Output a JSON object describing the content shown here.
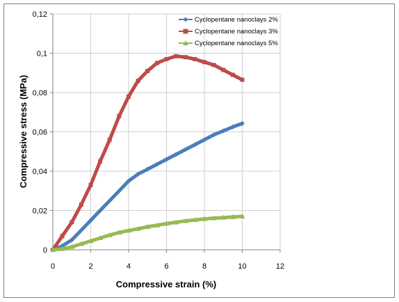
{
  "chart_data": {
    "type": "line",
    "xlabel": "Compressive strain (%)",
    "ylabel": "Compressive stress (MPa)",
    "xlim": [
      0,
      12
    ],
    "ylim": [
      0,
      0.12
    ],
    "xticks": [
      "0",
      "2",
      "4",
      "6",
      "8",
      "10",
      "12"
    ],
    "yticks": [
      "0",
      "0,02",
      "0,04",
      "0,06",
      "0,08",
      "0,1",
      "0,12"
    ],
    "grid": "horizontal and vertical",
    "legend_position": "top-right",
    "series": [
      {
        "name": "Cyclopentane nanoclays 2%",
        "color": "#4a7ebb",
        "marker": "diamond",
        "x": [
          0,
          0.5,
          1,
          1.5,
          2,
          2.5,
          3,
          3.5,
          4,
          4.5,
          5,
          5.5,
          6,
          6.5,
          7,
          7.5,
          8,
          8.5,
          9,
          9.5,
          10
        ],
        "y": [
          0,
          0.002,
          0.005,
          0.01,
          0.015,
          0.02,
          0.025,
          0.03,
          0.035,
          0.0385,
          0.041,
          0.0435,
          0.046,
          0.0485,
          0.051,
          0.0535,
          0.056,
          0.0585,
          0.0605,
          0.0625,
          0.0643
        ]
      },
      {
        "name": "Cyclopentane nanoclays 3%",
        "color": "#be4b48",
        "marker": "square",
        "x": [
          0,
          0.5,
          1,
          1.5,
          2,
          2.5,
          3,
          3.5,
          4,
          4.5,
          5,
          5.5,
          6,
          6.5,
          7,
          7.5,
          8,
          8.5,
          9,
          9.5,
          10
        ],
        "y": [
          0,
          0.007,
          0.014,
          0.023,
          0.033,
          0.045,
          0.056,
          0.068,
          0.078,
          0.086,
          0.091,
          0.095,
          0.097,
          0.0985,
          0.098,
          0.097,
          0.0955,
          0.094,
          0.0915,
          0.089,
          0.0865
        ]
      },
      {
        "name": "Cyclopentane nanoclays 5%",
        "color": "#98b954",
        "marker": "triangle",
        "x": [
          0,
          0.5,
          1,
          1.5,
          2,
          2.5,
          3,
          3.5,
          4,
          4.5,
          5,
          5.5,
          6,
          6.5,
          7,
          7.5,
          8,
          8.5,
          9,
          9.5,
          10
        ],
        "y": [
          0,
          0.0005,
          0.0015,
          0.003,
          0.0045,
          0.006,
          0.0075,
          0.0088,
          0.0098,
          0.0107,
          0.0117,
          0.0125,
          0.0133,
          0.014,
          0.0147,
          0.0152,
          0.0157,
          0.0161,
          0.0164,
          0.0167,
          0.017
        ]
      }
    ]
  }
}
